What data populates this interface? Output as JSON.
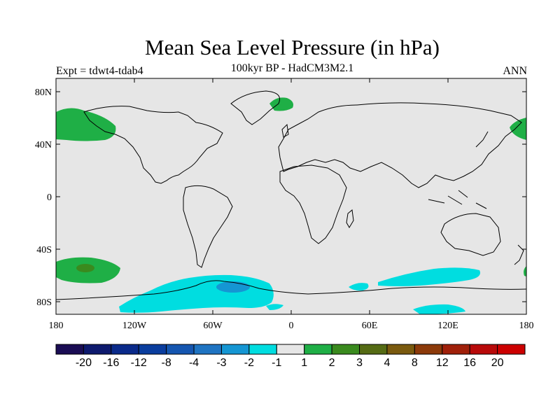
{
  "title": "Mean Sea Level Pressure (in hPa)",
  "subtitle": "100kyr BP - HadCM3M2.1",
  "experiment": "Expt = tdwt4-tdab4",
  "season": "ANN",
  "axes": {
    "lat_labels": [
      "80N",
      "40N",
      "0",
      "40S",
      "80S"
    ],
    "lon_labels": [
      "180",
      "120W",
      "60W",
      "0",
      "60E",
      "120E",
      "180"
    ]
  },
  "colorbar": {
    "labels": [
      "-20",
      "-16",
      "-12",
      "-8",
      "-4",
      "-3",
      "-2",
      "-1",
      "1",
      "2",
      "3",
      "4",
      "8",
      "12",
      "16",
      "20"
    ],
    "colors": [
      "#1a0d54",
      "#0e1a6e",
      "#0a2a8a",
      "#0a3d9e",
      "#1556b0",
      "#1f74c2",
      "#1596d3",
      "#00dde0",
      "#e6e6e6",
      "#1faf46",
      "#3a8a1e",
      "#556b14",
      "#7a5a0e",
      "#8c3a0a",
      "#a0200a",
      "#b80a0a",
      "#cc0000"
    ]
  },
  "chart_data": {
    "type": "heatmap",
    "title": "Mean Sea Level Pressure (in hPa)",
    "subtitle": "100kyr BP - HadCM3M2.1",
    "variable": "Mean Sea Level Pressure anomaly",
    "units": "hPa",
    "xlim": [
      -180,
      180
    ],
    "ylim": [
      -90,
      90
    ],
    "contour_levels": [
      -20,
      -16,
      -12,
      -8,
      -4,
      -3,
      -2,
      -1,
      1,
      2,
      3,
      4,
      8,
      12,
      16,
      20
    ],
    "features": [
      {
        "region": "North Pacific (Aleutian)",
        "range": "1 to 2"
      },
      {
        "region": "Greenland",
        "range": "1 to 2"
      },
      {
        "region": "South Pacific ~55S",
        "range": "1 to 3"
      },
      {
        "region": "Southern Ocean / Antarctic margin",
        "range": "-2 to -1"
      },
      {
        "region": "Weddell Sea",
        "range": "-3 to -2"
      }
    ]
  }
}
